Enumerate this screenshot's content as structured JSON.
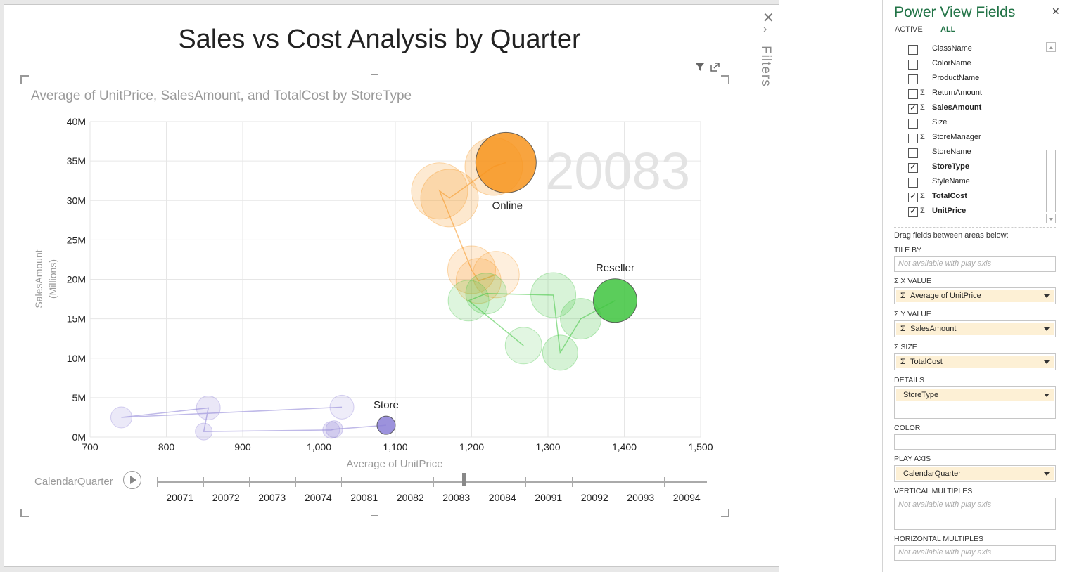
{
  "view": {
    "title": "Sales vs Cost Analysis by Quarter"
  },
  "chart": {
    "title": "Average of UnitPrice, SalesAmount, and TotalCost by StoreType",
    "watermark": "20083",
    "xlabel": "Average of UnitPrice",
    "ylabel": "SalesAmount",
    "ylabel_sub": "(Millions)"
  },
  "chart_data": {
    "type": "scatter",
    "title": "Average of UnitPrice, SalesAmount, and TotalCost by StoreType",
    "xlabel": "Average of UnitPrice",
    "ylabel": "SalesAmount (Millions)",
    "xlim": [
      700,
      1500
    ],
    "ylim": [
      0,
      40
    ],
    "x_ticks": [
      "700",
      "800",
      "900",
      "1,000",
      "1,100",
      "1,200",
      "1,300",
      "1,400",
      "1,500"
    ],
    "y_ticks": [
      "0M",
      "5M",
      "10M",
      "15M",
      "20M",
      "25M",
      "30M",
      "35M",
      "40M"
    ],
    "grid": true,
    "play_value": "20083",
    "series": [
      {
        "name": "Online",
        "color": "#f7941d",
        "points": [
          {
            "x": 1232,
            "y": 20.6,
            "size": 33
          },
          {
            "x": 1209,
            "y": 19.8,
            "size": 32
          },
          {
            "x": 1200,
            "y": 21.2,
            "size": 34
          },
          {
            "x": 1158,
            "y": 31.2,
            "size": 40
          },
          {
            "x": 1171,
            "y": 30.3,
            "size": 41
          },
          {
            "x": 1229,
            "y": 34.3,
            "size": 41
          },
          {
            "x": 1245,
            "y": 34.8,
            "size": 43
          }
        ]
      },
      {
        "name": "Reseller",
        "color": "#3ec43e",
        "points": [
          {
            "x": 1268,
            "y": 11.6,
            "size": 26
          },
          {
            "x": 1196,
            "y": 17.3,
            "size": 29
          },
          {
            "x": 1219,
            "y": 18.2,
            "size": 29
          },
          {
            "x": 1307,
            "y": 18.0,
            "size": 32
          },
          {
            "x": 1316,
            "y": 10.7,
            "size": 25
          },
          {
            "x": 1343,
            "y": 15.0,
            "size": 29
          },
          {
            "x": 1388,
            "y": 17.3,
            "size": 31
          }
        ]
      },
      {
        "name": "Store",
        "color": "#8b7fd6",
        "points": [
          {
            "x": 1030,
            "y": 3.8,
            "size": 17
          },
          {
            "x": 741,
            "y": 2.5,
            "size": 15
          },
          {
            "x": 855,
            "y": 3.7,
            "size": 17
          },
          {
            "x": 849,
            "y": 0.7,
            "size": 12
          },
          {
            "x": 1016,
            "y": 0.9,
            "size": 12
          },
          {
            "x": 1020,
            "y": 1.0,
            "size": 12
          },
          {
            "x": 1088,
            "y": 1.5,
            "size": 13
          }
        ]
      }
    ]
  },
  "play_axis": {
    "label": "CalendarQuarter",
    "quarters": [
      "20071",
      "20072",
      "20073",
      "20074",
      "20081",
      "20082",
      "20083",
      "20084",
      "20091",
      "20092",
      "20093",
      "20094"
    ],
    "current": "20083"
  },
  "filters": {
    "label": "Filters"
  },
  "panel": {
    "title": "Power View Fields",
    "tabs": {
      "active": "ACTIVE",
      "all": "ALL"
    },
    "fields": [
      {
        "name": "ClassName",
        "checked": false,
        "sigma": false
      },
      {
        "name": "ColorName",
        "checked": false,
        "sigma": false
      },
      {
        "name": "ProductName",
        "checked": false,
        "sigma": false
      },
      {
        "name": "ReturnAmount",
        "checked": false,
        "sigma": true
      },
      {
        "name": "SalesAmount",
        "checked": true,
        "sigma": true
      },
      {
        "name": "Size",
        "checked": false,
        "sigma": false
      },
      {
        "name": "StoreManager",
        "checked": false,
        "sigma": true
      },
      {
        "name": "StoreName",
        "checked": false,
        "sigma": false
      },
      {
        "name": "StoreType",
        "checked": true,
        "sigma": false
      },
      {
        "name": "StyleName",
        "checked": false,
        "sigma": false
      },
      {
        "name": "TotalCost",
        "checked": true,
        "sigma": true
      },
      {
        "name": "UnitPrice",
        "checked": true,
        "sigma": true
      }
    ],
    "hint": "Drag fields between areas below:",
    "areas": {
      "tile_by": {
        "label": "TILE BY",
        "placeholder": "Not available with play axis"
      },
      "x_value": {
        "label": "X VALUE",
        "value": "Average of UnitPrice"
      },
      "y_value": {
        "label": "Y VALUE",
        "value": "SalesAmount"
      },
      "size": {
        "label": "SIZE",
        "value": "TotalCost"
      },
      "details": {
        "label": "DETAILS",
        "value": "StoreType"
      },
      "color": {
        "label": "COLOR"
      },
      "play_axis": {
        "label": "PLAY AXIS",
        "value": "CalendarQuarter"
      },
      "vertical": {
        "label": "VERTICAL MULTIPLES",
        "placeholder": "Not available with play axis"
      },
      "horizontal": {
        "label": "HORIZONTAL MULTIPLES",
        "placeholder": "Not available with play axis"
      }
    }
  }
}
